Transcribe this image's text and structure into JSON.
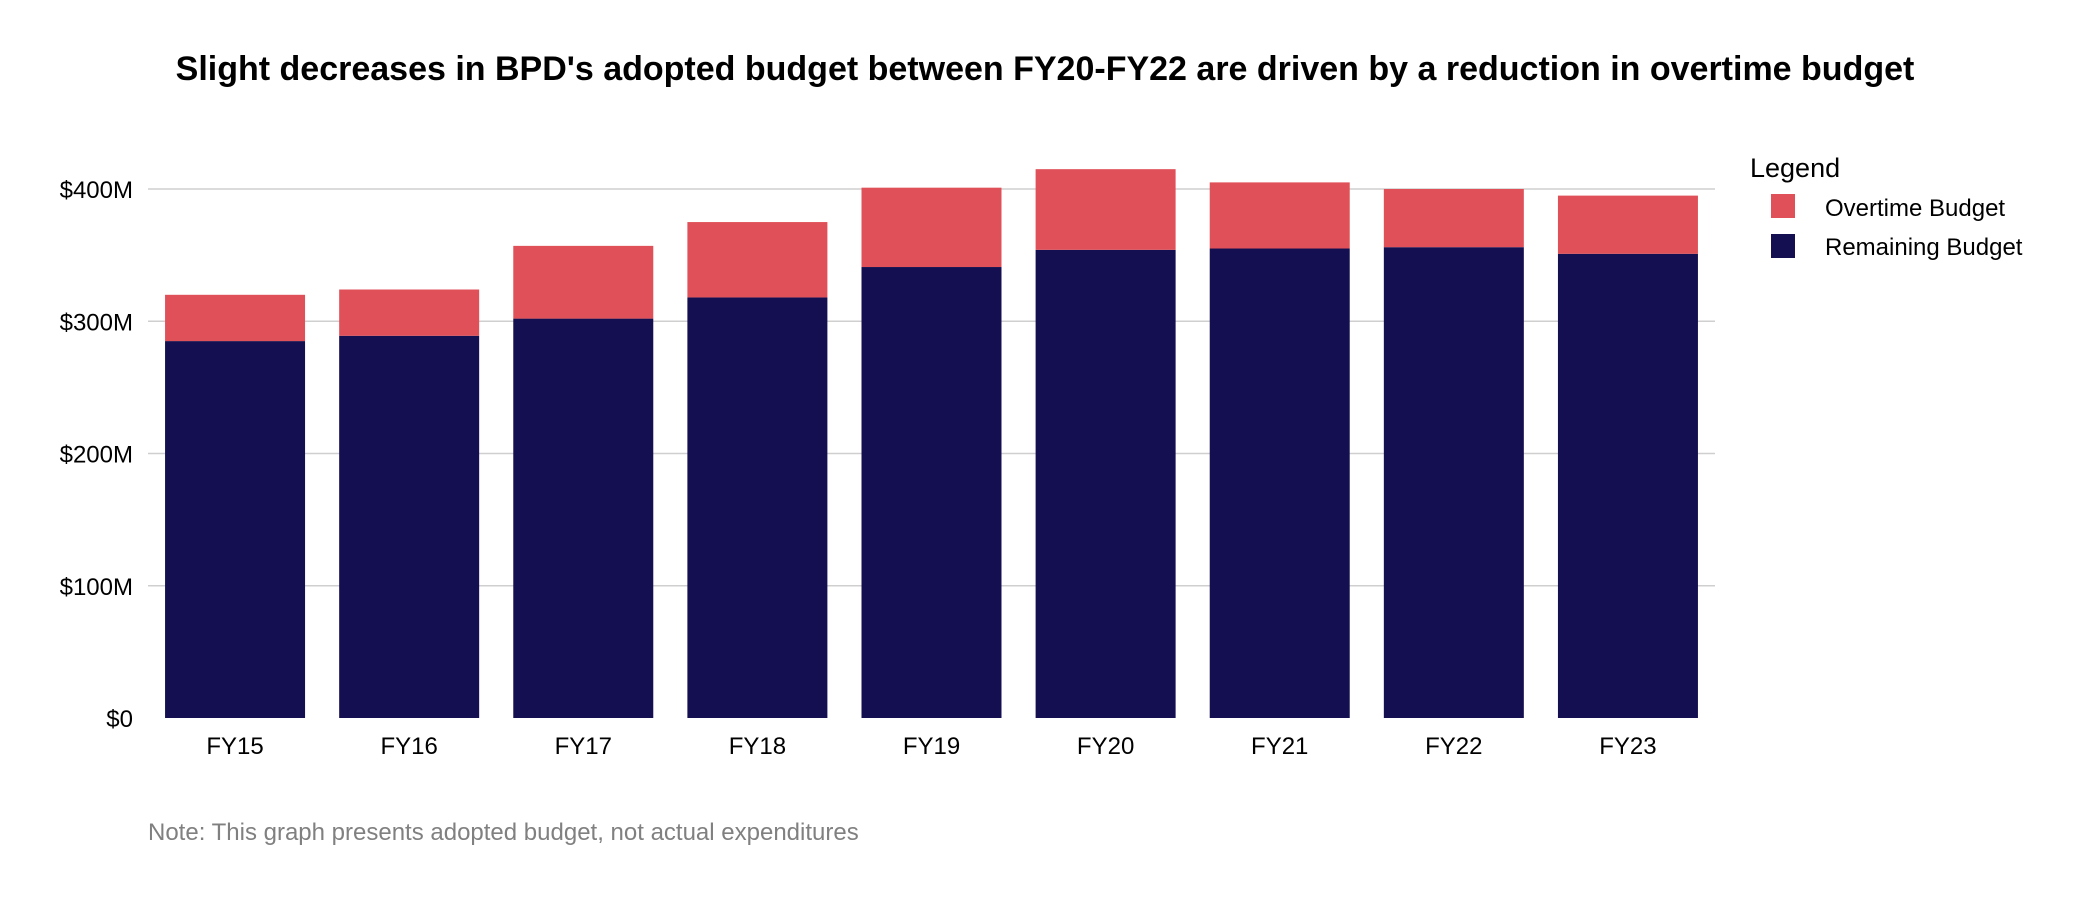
{
  "chart_data": {
    "type": "bar",
    "stacked": true,
    "title": "Slight decreases in BPD's adopted budget between FY20-FY22 are driven by a reduction in overtime budget",
    "categories": [
      "FY15",
      "FY16",
      "FY17",
      "FY18",
      "FY19",
      "FY20",
      "FY21",
      "FY22",
      "FY23"
    ],
    "series": [
      {
        "name": "Remaining Budget",
        "color": "#140f50",
        "values": [
          285,
          289,
          302,
          318,
          341,
          354,
          355,
          356,
          351
        ]
      },
      {
        "name": "Overtime Budget",
        "color": "#e05058",
        "values": [
          35,
          35,
          55,
          57,
          60,
          61,
          50,
          44,
          44
        ]
      }
    ],
    "ylim": [
      0,
      400
    ],
    "yticks": [
      0,
      100,
      200,
      300,
      400
    ],
    "ytick_labels": [
      "$0",
      "$100M",
      "$200M",
      "$300M",
      "$400M"
    ],
    "xlabel": "",
    "ylabel": "",
    "grid": true,
    "legend": {
      "title": "Legend",
      "position": "right",
      "entries": [
        {
          "label": "Overtime Budget",
          "color": "#e05058"
        },
        {
          "label": "Remaining Budget",
          "color": "#140f50"
        }
      ]
    },
    "note": "Note: This graph presents adopted budget, not actual expenditures"
  }
}
